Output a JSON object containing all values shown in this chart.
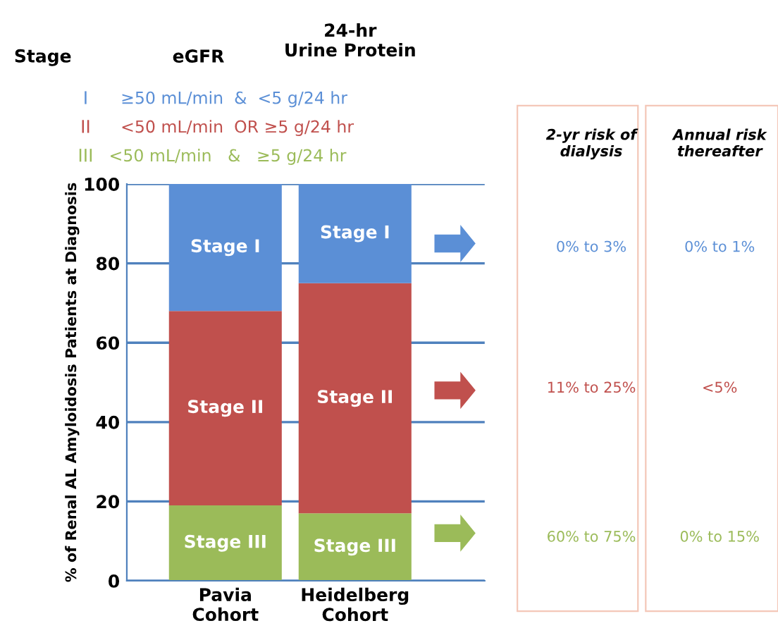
{
  "chart_data": {
    "type": "bar",
    "stacked": true,
    "categories": [
      "Pavia\nCohort",
      "Heidelberg\nCohort"
    ],
    "series": [
      {
        "name": "Stage III",
        "color": "#9bbb59",
        "values": [
          19,
          17
        ]
      },
      {
        "name": "Stage II",
        "color": "#c0504d",
        "values": [
          49,
          58
        ]
      },
      {
        "name": "Stage I",
        "color": "#5b8fd6",
        "values": [
          32,
          25
        ]
      }
    ],
    "ylabel": "% of Renal AL Amyloidosis Patients at Diagnosis",
    "ylim": [
      0,
      100
    ],
    "yticks": [
      0,
      20,
      40,
      60,
      80,
      100
    ],
    "grid": "y",
    "annotations": [
      "Stage",
      "eGFR",
      "24-hr\nUrine Protein",
      "I",
      "≥50 mL/min  &  <5 g/24 hr",
      "II",
      "<50 mL/min  OR ≥5 g/24 hr",
      "III",
      "<50 mL/min   &   ≥5 g/24 hr",
      "2-yr risk of\ndialysis",
      "Annual risk\nthereafter",
      "0% to 3%",
      "0% to 1%",
      "11% to 25%",
      "<5%",
      "60% to 75%",
      "0% to 15%"
    ]
  }
}
